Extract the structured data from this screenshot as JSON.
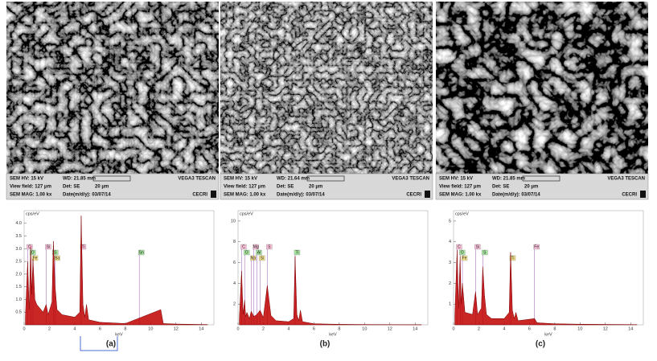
{
  "panels": [
    {
      "sem": {
        "hv": "SEM HV: 15 kV",
        "wd": "WD: 21.85 mm",
        "brand": "VEGA3 TESCAN",
        "view_field": "View field: 127 μm",
        "det": "Det: SE",
        "scale": "20 μm",
        "mag": "SEM MAG: 1.00 kx",
        "date": "Date(m/d/y): 03/07/14",
        "lab": "CECRI"
      },
      "chart_data": {
        "type": "area",
        "y_label": "cps/eV",
        "x_label": "keV",
        "panel_label": "(a)",
        "color": "#c00000",
        "xlim": [
          0,
          15
        ],
        "xticks": [
          0,
          2,
          4,
          6,
          8,
          10,
          12,
          14
        ],
        "ylim": [
          0,
          4.5
        ],
        "yticks": [
          {
            "value": 0.5,
            "label": "0.5"
          },
          {
            "value": 1,
            "label": "1.0"
          },
          {
            "value": 1.5,
            "label": "1.5"
          },
          {
            "value": 2,
            "label": "2.0"
          },
          {
            "value": 2.5,
            "label": "2.5"
          },
          {
            "value": 3,
            "label": "3.0"
          },
          {
            "value": 3.5,
            "label": "3.5"
          },
          {
            "value": 4,
            "label": "4.0"
          }
        ],
        "x": [
          0.1,
          0.28,
          0.4,
          0.52,
          0.6,
          0.7,
          0.85,
          1.0,
          1.5,
          1.74,
          1.9,
          2.2,
          2.31,
          2.45,
          2.6,
          3.0,
          4.0,
          4.4,
          4.51,
          4.65,
          4.8,
          4.93,
          5.1,
          6,
          8,
          10.8,
          11,
          12,
          14.5
        ],
        "values": [
          0.3,
          2.5,
          0.6,
          3.1,
          1.2,
          2.6,
          1.0,
          0.8,
          0.5,
          0.8,
          0.4,
          0.9,
          3.3,
          1.5,
          0.6,
          0.4,
          0.3,
          0.5,
          4.3,
          0.8,
          0.3,
          0.8,
          0.2,
          0.1,
          0.05,
          0.6,
          0.05,
          0.03,
          0.01
        ],
        "peak_labels": [
          {
            "label": "C",
            "x": 0.28
          },
          {
            "label": "O",
            "x": 0.52
          },
          {
            "label": "Fe",
            "x": 0.7
          },
          {
            "label": "Si",
            "x": 1.74
          },
          {
            "label": "S",
            "x": 2.31
          },
          {
            "label": "Ba",
            "x": 2.45
          },
          {
            "label": "Ti",
            "x": 4.51
          },
          {
            "label": "Sn",
            "x": 9.1
          }
        ]
      }
    },
    {
      "sem": {
        "hv": "SEM HV: 15 kV",
        "wd": "WD: 21.64 mm",
        "brand": "VEGA3 TESCAN",
        "view_field": "View field: 127 μm",
        "det": "Det: SE",
        "scale": "20 μm",
        "mag": "SEM MAG: 1.00 kx",
        "date": "Date(m/d/y): 03/07/14",
        "lab": "CECRI"
      },
      "chart_data": {
        "type": "area",
        "y_label": "cps/eV",
        "x_label": "keV",
        "panel_label": "(b)",
        "color": "#c00000",
        "xlim": [
          0,
          15
        ],
        "xticks": [
          0,
          2,
          4,
          6,
          8,
          10,
          12,
          14
        ],
        "ylim": [
          0,
          11
        ],
        "yticks": [
          2,
          4,
          6,
          8,
          10
        ],
        "x": [
          0.1,
          0.28,
          0.4,
          0.52,
          0.6,
          0.7,
          0.9,
          1.04,
          1.25,
          1.49,
          1.74,
          2.0,
          2.31,
          2.6,
          3.0,
          4.0,
          4.4,
          4.51,
          4.65,
          4.8,
          4.93,
          5.1,
          6,
          8,
          10,
          12,
          14.5
        ],
        "values": [
          0.5,
          5.2,
          1.0,
          2.4,
          0.8,
          1.2,
          0.6,
          1.3,
          0.8,
          1.0,
          1.4,
          0.7,
          3.8,
          0.9,
          0.4,
          0.3,
          0.6,
          6.6,
          1.0,
          0.4,
          1.4,
          0.3,
          0.1,
          0.05,
          0.03,
          0.02,
          0.01
        ],
        "peak_labels": [
          {
            "label": "C",
            "x": 0.28
          },
          {
            "label": "O",
            "x": 0.52
          },
          {
            "label": "Na",
            "x": 1.04
          },
          {
            "label": "Mg",
            "x": 1.25
          },
          {
            "label": "Al",
            "x": 1.49
          },
          {
            "label": "Si",
            "x": 1.74
          },
          {
            "label": "S",
            "x": 2.31
          },
          {
            "label": "Ti",
            "x": 4.51
          }
        ]
      }
    },
    {
      "sem": {
        "hv": "SEM HV: 15 kV",
        "wd": "WD: 21.85 mm",
        "brand": "VEGA3 TESCAN",
        "view_field": "View field: 127 μm",
        "det": "Det: SE",
        "scale": "20 μm",
        "mag": "SEM MAG: 1.00 kx",
        "date": "Date(m/d/y): 03/07/14",
        "lab": "CECRI"
      },
      "chart_data": {
        "type": "area",
        "y_label": "cps/eV",
        "x_label": "keV",
        "panel_label": "(c)",
        "color": "#c00000",
        "xlim": [
          0,
          15
        ],
        "xticks": [
          0,
          2,
          4,
          6,
          8,
          10,
          12,
          14
        ],
        "ylim": [
          0,
          5.5
        ],
        "yticks": [
          1,
          2,
          3,
          4,
          5
        ],
        "x": [
          0.1,
          0.28,
          0.4,
          0.52,
          0.6,
          0.7,
          0.9,
          1.5,
          1.74,
          1.9,
          2.2,
          2.31,
          2.45,
          2.6,
          3.0,
          4.0,
          4.4,
          4.51,
          4.65,
          4.8,
          4.93,
          5.1,
          6.4,
          6.6,
          8,
          10,
          12,
          14.5
        ],
        "values": [
          0.4,
          3.6,
          0.8,
          3.3,
          1.0,
          2.0,
          0.6,
          0.5,
          1.6,
          0.5,
          0.8,
          2.8,
          1.4,
          0.5,
          0.3,
          0.3,
          0.6,
          3.5,
          0.7,
          0.3,
          0.6,
          0.2,
          0.3,
          0.1,
          0.05,
          0.03,
          0.02,
          0.01
        ],
        "peak_labels": [
          {
            "label": "C",
            "x": 0.28
          },
          {
            "label": "O",
            "x": 0.52
          },
          {
            "label": "Fe",
            "x": 0.7
          },
          {
            "label": "Si",
            "x": 1.74
          },
          {
            "label": "S",
            "x": 2.31
          },
          {
            "label": "Ti",
            "x": 4.51
          },
          {
            "label": "Fe",
            "x": 6.4
          }
        ]
      }
    }
  ]
}
